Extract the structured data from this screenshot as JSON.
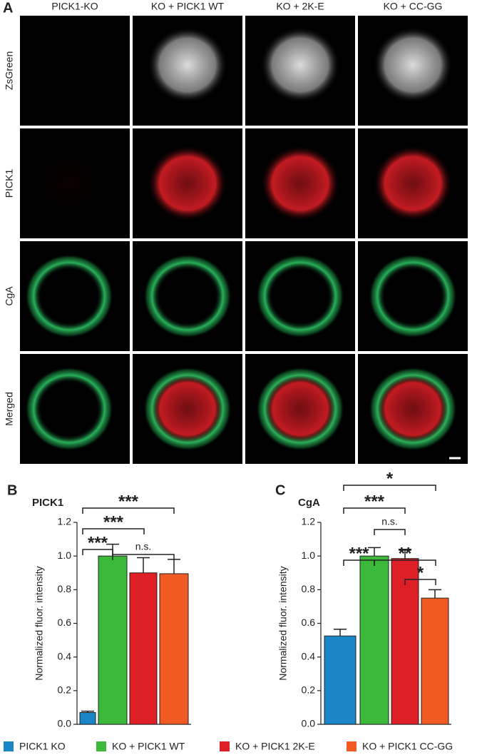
{
  "figure": {
    "panel_label": "A",
    "columns": [
      "PICK1-KO",
      "KO + PICK1 WT",
      "KO + 2K-E",
      "KO + CC-GG"
    ],
    "rows": [
      "ZsGreen",
      "PICK1",
      "CgA",
      "Merged"
    ]
  },
  "legend": [
    {
      "name": "PICK1 KO",
      "color": "#1a86c8"
    },
    {
      "name": "KO + PICK1 WT",
      "color": "#3cb83a"
    },
    {
      "name": "KO + PICK1 2K-E",
      "color": "#de1f26"
    },
    {
      "name": "KO + PICK1 CC-GG",
      "color": "#f15a22"
    }
  ],
  "chart_data": [
    {
      "type": "bar",
      "panel": "B",
      "title": "PICK1",
      "y_label": "Normalized fluor. intensity",
      "categories": [
        null,
        null,
        null,
        null
      ],
      "values": [
        0.07,
        1.0,
        0.9,
        0.895
      ],
      "errors": [
        0.008,
        0.07,
        0.09,
        0.085
      ],
      "ylim": [
        0,
        1.2
      ],
      "yticks": [
        {
          "value": 0,
          "label": "0.0"
        },
        0.2,
        0.4,
        0.6,
        0.8,
        {
          "value": 1,
          "label": "1.0"
        },
        1.2
      ],
      "annotations": [
        "***",
        "***",
        "***",
        "n.s."
      ]
    },
    {
      "type": "bar",
      "panel": "C",
      "title": "CgA",
      "y_label": "Normalized fluor. intensity",
      "categories": [
        null,
        null,
        null,
        null
      ],
      "values": [
        0.525,
        1.0,
        0.985,
        0.75
      ],
      "errors": [
        0.04,
        0.05,
        0.055,
        0.05
      ],
      "ylim": [
        0,
        1.2
      ],
      "yticks": [
        {
          "value": 0,
          "label": "0.0"
        },
        0.2,
        0.4,
        0.6,
        0.8,
        {
          "value": 1,
          "label": "1.0"
        },
        1.2
      ],
      "annotations": [
        "*",
        "***",
        "n.s.",
        "***",
        "**",
        "*"
      ]
    }
  ]
}
